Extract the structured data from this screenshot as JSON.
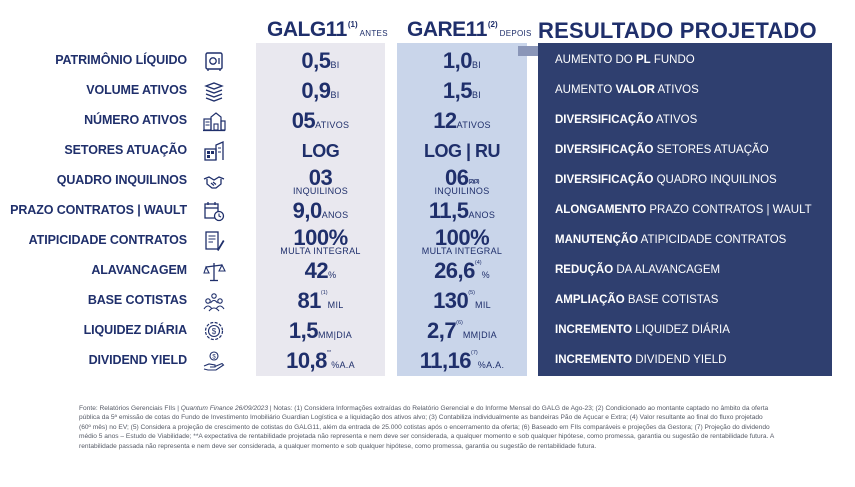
{
  "header": {
    "galg": {
      "name": "GALG11",
      "note": "(1)",
      "tag": "ANTES"
    },
    "gare": {
      "name": "GARE11",
      "note": "(2)",
      "tag": "DEPOIS"
    },
    "result": "RESULTADO PROJETADO"
  },
  "rows": [
    {
      "label": "PATRIMÔNIO LÍQUIDO",
      "icon": "safe-icon",
      "a": {
        "value": "0,5",
        "unit": "BI",
        "fn": ""
      },
      "b": {
        "value": "1,0",
        "unit": "BI",
        "fn": ""
      },
      "res": {
        "pre": "AUMENTO DO ",
        "bold": "PL",
        "post": " FUNDO"
      }
    },
    {
      "label": "VOLUME ATIVOS",
      "icon": "layers-icon",
      "a": {
        "value": "0,9",
        "unit": "BI",
        "fn": ""
      },
      "b": {
        "value": "1,5",
        "unit": "BI",
        "fn": ""
      },
      "res": {
        "pre": "AUMENTO ",
        "bold": "VALOR",
        "post": " ATIVOS"
      }
    },
    {
      "label": "NÚMERO  ATIVOS",
      "icon": "buildings-icon",
      "a": {
        "value": "05",
        "unit": "ATIVOS",
        "fn": ""
      },
      "b": {
        "value": "12",
        "unit": "ATIVOS",
        "fn": ""
      },
      "res": {
        "pre": "",
        "bold": "DIVERSIFICAÇÃO",
        "post": " ATIVOS"
      }
    },
    {
      "label": "SETORES ATUAÇÃO",
      "icon": "sectors-icon",
      "a": {
        "value": "LOG",
        "unit": "",
        "fn": ""
      },
      "b": {
        "value": "LOG | RU",
        "unit": "",
        "fn": ""
      },
      "res": {
        "pre": "",
        "bold": "DIVERSIFICAÇÃO",
        "post": " SETORES ATUAÇÃO"
      }
    },
    {
      "label": "QUADRO INQUILINOS",
      "icon": "handshake-icon",
      "a": {
        "value": "03",
        "unit": "INQUILINOS",
        "fn": ""
      },
      "b": {
        "value": "06",
        "unit": "INQUILINOS",
        "fn": "(2)(3)"
      },
      "res": {
        "pre": "",
        "bold": "DIVERSIFICAÇÃO",
        "post": " QUADRO INQUILINOS"
      }
    },
    {
      "label": "PRAZO CONTRATOS | WAULT",
      "icon": "calendar-clock-icon",
      "a": {
        "value": "9,0",
        "unit": "ANOS",
        "fn": ""
      },
      "b": {
        "value": "11,5",
        "unit": "ANOS",
        "fn": ""
      },
      "res": {
        "pre": "",
        "bold": "ALONGAMENTO",
        "post": " PRAZO CONTRATOS | WAULT"
      }
    },
    {
      "label": "ATIPICIDADE CONTRATOS",
      "icon": "contract-icon",
      "a": {
        "value": "100%",
        "unit": "MULTA INTEGRAL",
        "fn": ""
      },
      "b": {
        "value": "100%",
        "unit": "MULTA INTEGRAL",
        "fn": ""
      },
      "res": {
        "pre": "",
        "bold": "MANUTENÇÃO",
        "post": " ATIPICIDADE CONTRATOS"
      }
    },
    {
      "label": "ALAVANCAGEM",
      "icon": "scale-icon",
      "a": {
        "value": "42",
        "unit": "%",
        "fn": ""
      },
      "b": {
        "value": "26,6",
        "unit": "%",
        "fn": "(4)"
      },
      "res": {
        "pre": "",
        "bold": "REDUÇÃO",
        "post": " DA ALAVANCAGEM"
      }
    },
    {
      "label": "BASE COTISTAS",
      "icon": "people-icon",
      "a": {
        "value": "81",
        "unit": "MIL",
        "fn": "(1)"
      },
      "b": {
        "value": "130",
        "unit": "MIL",
        "fn": "(5)"
      },
      "res": {
        "pre": "",
        "bold": "AMPLIAÇÃO",
        "post": " BASE COTISTAS"
      }
    },
    {
      "label": "LIQUIDEZ DIÁRIA",
      "icon": "coin-icon",
      "a": {
        "value": "1,5",
        "unit": "MM|DIA",
        "fn": ""
      },
      "b": {
        "value": "2,7",
        "unit": "MM|DIA",
        "fn": "(6)"
      },
      "res": {
        "pre": "",
        "bold": "INCREMENTO",
        "post": " LIQUIDEZ DIÁRIA"
      }
    },
    {
      "label": "DIVIDEND YIELD",
      "icon": "hand-coin-icon",
      "a": {
        "value": "10,8",
        "unit": "%A.A",
        "fn": "**"
      },
      "b": {
        "value": "11,16",
        "unit": "%A.A.",
        "fn": "(7)"
      },
      "res": {
        "pre": "",
        "bold": "INCREMENTO",
        "post": " DIVIDEND YIELD"
      }
    }
  ],
  "footer": {
    "pre": "Fonte:  Relatórios Gerenciais FIIs | ",
    "italic": "Quantum Finance 26/09/2023",
    "post": " | Notas: (1) Considera Informações extraídas do Relatório Gerencial e do  Informe Mensal do GALG de Ago-23; (2) Condicionado ao montante captado no âmbito da oferta pública da 5ª emissão de cotas do Fundo de Investimento Imobiliário Guardian Logística e a liquidação dos ativos alvo; (3) Contabiliza individualmente as bandeiras Pão de Açucar e Extra; (4) Valor resultante ao final do fluxo projetado (60º mês) no EV; (5) Considera a projeção de crescimento de cotistas do GALG11, além da entrada de 25.000 cotistas após o encerramento da oferta; (6) Baseado em FIIs comparáveis e projeções da Gestora; (7) Projeção do dividendo médio 5 anos – Estudo de Viabilidade; **A expectativa de rentabilidade projetada não representa e nem deve ser considerada, a qualquer momento e sob qualquer hipótese, como promessa, garantia ou sugestão de rentabilidade futura. A rentabilidade passada não representa e nem deve ser considerada, a qualquer momento e sob qualquer hipótese, como promessa, garantia ou sugestão de rentabilidade futura."
  }
}
